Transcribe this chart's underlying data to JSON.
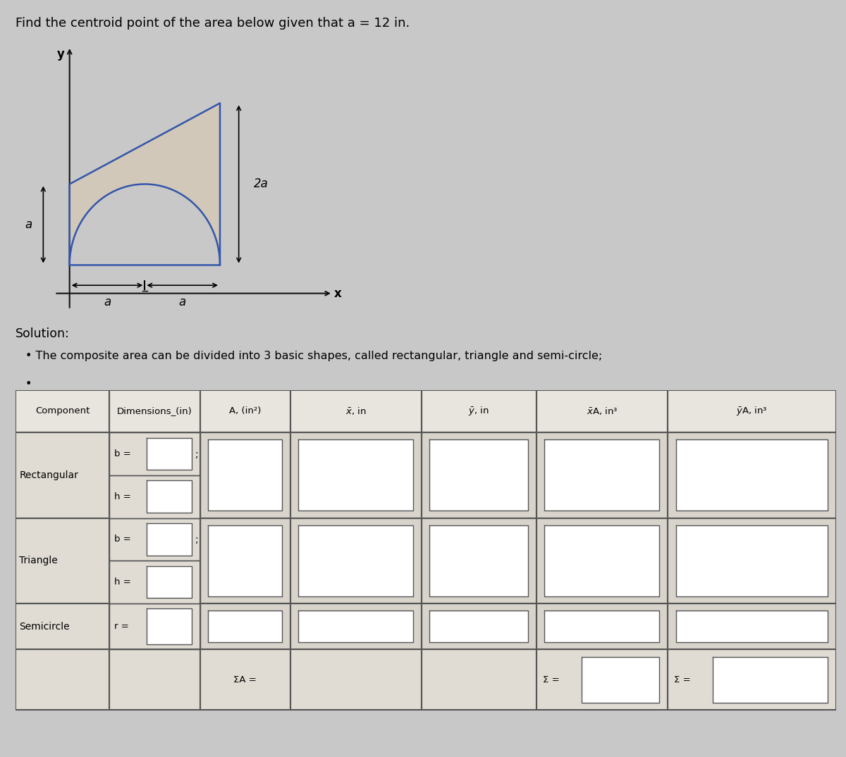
{
  "title": "Find the centroid point of the area below given that a = 12 in.",
  "title_fontsize": 13,
  "bg_color": "#c8c8c8",
  "solution_text": "Solution:",
  "bullet1": "The composite area can be divided into 3 basic shapes, called rectangular, triangle and semi-circle;",
  "shape_fill": "#d4c8b8",
  "shape_line": "#3355aa",
  "axis_color": "#111111",
  "table_border": "#555555",
  "cell_bg_label": "#e0dcd4",
  "cell_bg_input": "#d8d4cc",
  "cell_bg_white": "#ffffff",
  "header_bg": "#e8e4de",
  "sum_label": "ΣA =",
  "sum_xA": "Σ =",
  "sum_yA": "Σ ="
}
